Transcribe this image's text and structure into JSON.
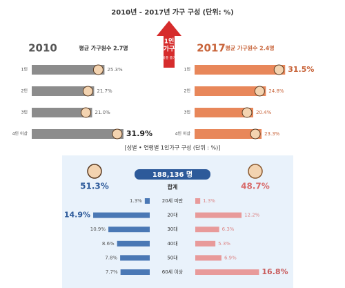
{
  "title": "2010년 - 2017년 가구 구성 (단위: %)",
  "arrow": {
    "lines": [
      "1인",
      "가구"
    ],
    "note": "비중 증가"
  },
  "chart_data": [
    {
      "type": "hbar",
      "title": "2010",
      "subtitle": "평균 가구원수 2.7명",
      "categories": [
        "1인",
        "2인",
        "3인",
        "4인 이상"
      ],
      "values": [
        25.3,
        21.7,
        21.0,
        31.9
      ],
      "value_labels": [
        "25.3%",
        "21.7%",
        "21.0%",
        "31.9%"
      ],
      "color": "#8c8c8c",
      "xlim": [
        0,
        36
      ]
    },
    {
      "type": "hbar",
      "title": "2017",
      "subtitle": "평균 가구원수 2.4명",
      "categories": [
        "1인",
        "2인",
        "3인",
        "4인 이상"
      ],
      "values": [
        31.5,
        24.8,
        20.4,
        23.3
      ],
      "value_labels": [
        "31.5%",
        "24.8%",
        "20.4%",
        "23.3%"
      ],
      "color": "#e8875a",
      "xlim": [
        0,
        36
      ]
    },
    {
      "type": "diverging",
      "title": "[성별 • 연령별 1인가구 구성 (단위 : %)]",
      "total": "188,136 명",
      "total_label": "합계",
      "categories": [
        "20세 미만",
        "20대",
        "30대",
        "40대",
        "50대",
        "60세 이상"
      ],
      "series": [
        {
          "total": "51.3%",
          "color": "#4a78b5",
          "values": [
            1.3,
            14.9,
            10.9,
            8.6,
            7.8,
            7.7
          ],
          "value_labels": [
            "1.3%",
            "14.9%",
            "10.9%",
            "8.6%",
            "7.8%",
            "7.7%"
          ]
        },
        {
          "total": "48.7%",
          "color": "#e89a9a",
          "values": [
            1.3,
            12.2,
            6.3,
            5.3,
            6.9,
            16.8
          ],
          "value_labels": [
            "1.3%",
            "12.2%",
            "6.3%",
            "5.3%",
            "6.9%",
            "16.8%"
          ]
        }
      ],
      "xlim": [
        0,
        20
      ]
    }
  ]
}
